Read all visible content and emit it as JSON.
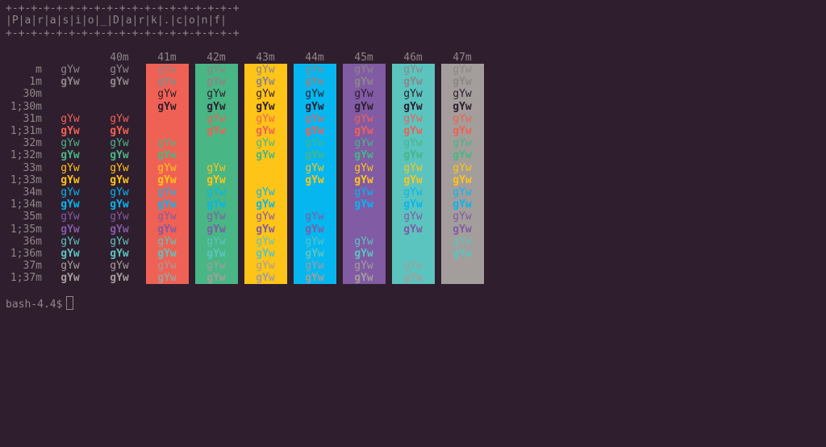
{
  "banner": {
    "top": "+-+-+-+-+-+-+-+-+-+-+-+-+-+-+-+-+-+-+",
    "title": "|P|a|r|a|s|i|o|_|D|a|r|k|.|c|o|n|f|",
    "bottom": "+-+-+-+-+-+-+-+-+-+-+-+-+-+-+-+-+-+-+"
  },
  "sample_text": "gYw",
  "column_headers": [
    "40m",
    "41m",
    "42m",
    "43m",
    "44m",
    "45m",
    "46m",
    "47m"
  ],
  "row_labels": [
    "m",
    "1m",
    "30m",
    "1;30m",
    "31m",
    "1;31m",
    "32m",
    "1;32m",
    "33m",
    "1;33m",
    "34m",
    "1;34m",
    "35m",
    "1;35m",
    "36m",
    "1;36m",
    "37m",
    "1;37m"
  ],
  "palette": {
    "terminal_bg": "#2f1e2e",
    "default_fg": "#8d8687",
    "black": "#2f1e2e",
    "red": "#ef6155",
    "green": "#48b685",
    "yellow": "#fec418",
    "blue": "#06b6ef",
    "magenta": "#815ba4",
    "cyan": "#5bc4bf",
    "white": "#a39e9b"
  },
  "prompt": "bash-4.4$"
}
